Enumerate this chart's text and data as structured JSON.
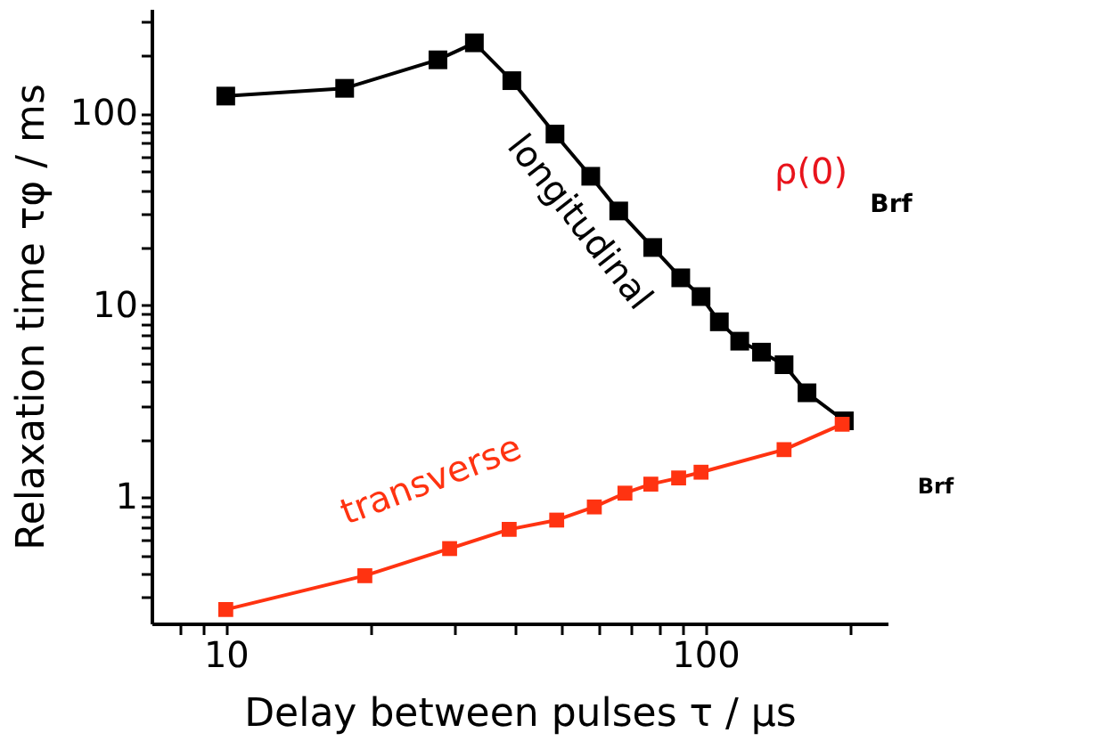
{
  "chart_data": {
    "type": "line",
    "xlabel": "Delay between pulses τ   / µs",
    "ylabel": "Relaxation time τφ / ms",
    "log": "xy",
    "grid": false,
    "marker": "square",
    "line_style": "solid",
    "xlim": [
      7,
      240
    ],
    "ylim": [
      0.22,
      350
    ],
    "xticks": [
      {
        "value": 8,
        "label": null
      },
      {
        "value": 9,
        "label": null
      },
      10,
      {
        "value": 20,
        "label": null
      },
      {
        "value": 30,
        "label": null
      },
      {
        "value": 40,
        "label": null
      },
      {
        "value": 50,
        "label": null
      },
      {
        "value": 60,
        "label": null
      },
      {
        "value": 70,
        "label": null
      },
      {
        "value": 80,
        "label": null
      },
      {
        "value": 90,
        "label": null
      },
      100,
      {
        "value": 200,
        "label": null
      }
    ],
    "yticks": [
      {
        "value": 0.3,
        "label": null
      },
      {
        "value": 0.4,
        "label": null
      },
      {
        "value": 0.5,
        "label": null
      },
      {
        "value": 0.6,
        "label": null
      },
      {
        "value": 0.7,
        "label": null
      },
      {
        "value": 0.8,
        "label": null
      },
      {
        "value": 0.9,
        "label": null
      },
      1,
      {
        "value": 2,
        "label": null
      },
      {
        "value": 3,
        "label": null
      },
      {
        "value": 4,
        "label": null
      },
      {
        "value": 5,
        "label": null
      },
      {
        "value": 6,
        "label": null
      },
      {
        "value": 7,
        "label": null
      },
      {
        "value": 8,
        "label": null
      },
      {
        "value": 9,
        "label": null
      },
      10,
      {
        "value": 20,
        "label": null
      },
      {
        "value": 30,
        "label": null
      },
      {
        "value": 40,
        "label": null
      },
      {
        "value": 50,
        "label": null
      },
      {
        "value": 60,
        "label": null
      },
      {
        "value": 70,
        "label": null
      },
      {
        "value": 80,
        "label": null
      },
      {
        "value": 90,
        "label": null
      },
      100,
      {
        "value": 200,
        "label": null
      },
      {
        "value": 300,
        "label": null
      }
    ],
    "series": [
      {
        "name": "longitudinal",
        "color": "#000000",
        "x": [
          10,
          17.7,
          27.7,
          33,
          39.5,
          48.6,
          57.7,
          66,
          77.7,
          88.9,
          98,
          107,
          118,
          131,
          146,
          163,
          195
        ],
        "values": [
          123,
          135,
          190,
          233,
          148,
          78,
          47,
          31,
          20,
          13.9,
          11.1,
          8.2,
          6.5,
          5.7,
          4.9,
          3.5,
          2.5
        ]
      },
      {
        "name": "transverse",
        "color": "#ff3311",
        "x": [
          10,
          19.5,
          29.3,
          39,
          49,
          58.7,
          68,
          77,
          88,
          98,
          146,
          193
        ],
        "values": [
          0.26,
          0.39,
          0.54,
          0.68,
          0.76,
          0.89,
          1.05,
          1.17,
          1.26,
          1.35,
          1.77,
          2.4
        ]
      }
    ],
    "annotations": [
      "ρ(0)",
      "Brf",
      "Brf"
    ]
  }
}
